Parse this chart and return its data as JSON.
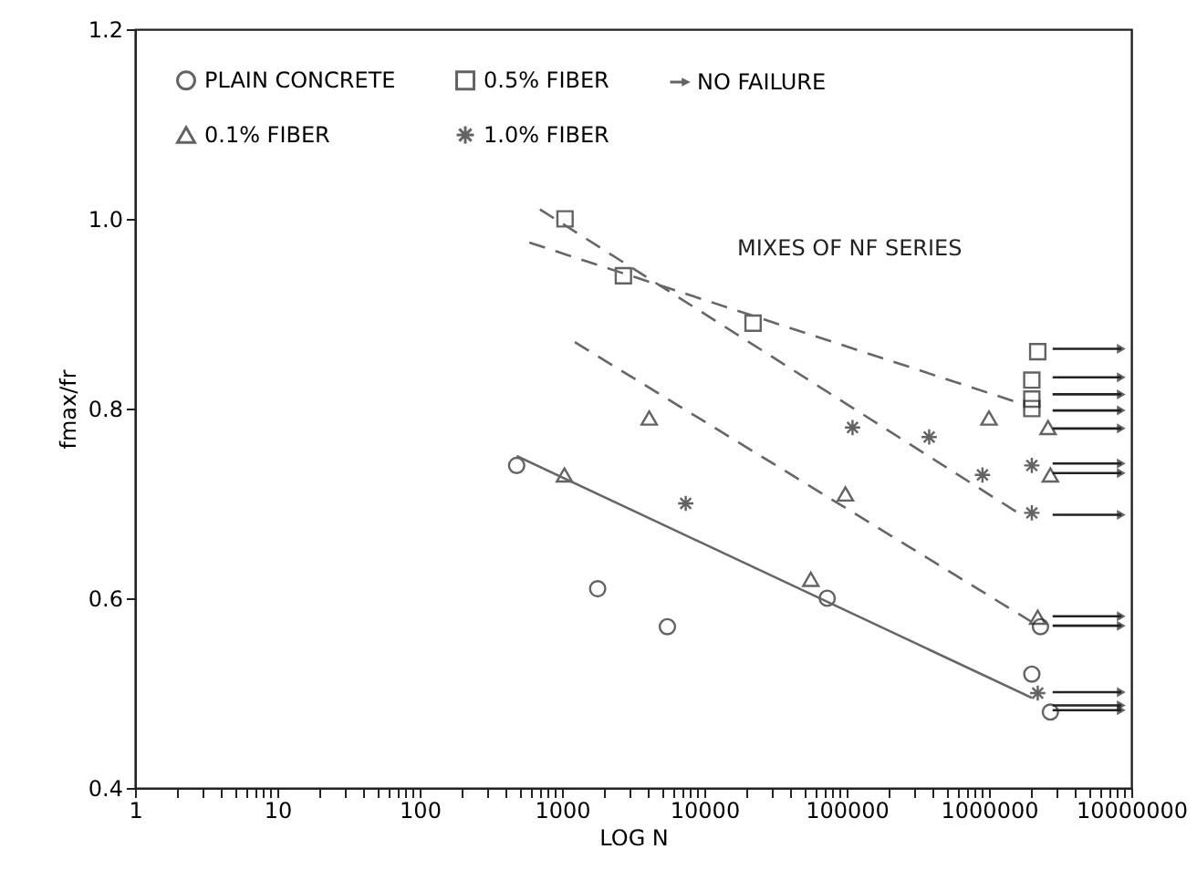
{
  "chart_data": {
    "type": "scatter",
    "xlabel": "LOG N",
    "ylabel": "fmax/fr",
    "annotations": [
      "MIXES OF NF SERIES"
    ],
    "log": "x",
    "grid": false,
    "legend": "top left",
    "xlim": [
      1,
      10000000
    ],
    "ylim": [
      0.4,
      1.2
    ],
    "xticks": [
      1,
      {
        "value": 2,
        "label": null
      },
      {
        "value": 3,
        "label": null
      },
      {
        "value": 4,
        "label": null
      },
      {
        "value": 5,
        "label": null
      },
      {
        "value": 6,
        "label": null
      },
      {
        "value": 7,
        "label": null
      },
      {
        "value": 8,
        "label": null
      },
      {
        "value": 9,
        "label": null
      },
      10,
      {
        "value": 20,
        "label": null
      },
      {
        "value": 30,
        "label": null
      },
      {
        "value": 40,
        "label": null
      },
      {
        "value": 50,
        "label": null
      },
      {
        "value": 60,
        "label": null
      },
      {
        "value": 70,
        "label": null
      },
      {
        "value": 80,
        "label": null
      },
      {
        "value": 90,
        "label": null
      },
      100,
      {
        "value": 200,
        "label": null
      },
      {
        "value": 300,
        "label": null
      },
      {
        "value": 400,
        "label": null
      },
      {
        "value": 500,
        "label": null
      },
      {
        "value": 600,
        "label": null
      },
      {
        "value": 700,
        "label": null
      },
      {
        "value": 800,
        "label": null
      },
      {
        "value": 900,
        "label": null
      },
      1000,
      {
        "value": 2000,
        "label": null
      },
      {
        "value": 3000,
        "label": null
      },
      {
        "value": 4000,
        "label": null
      },
      {
        "value": 5000,
        "label": null
      },
      {
        "value": 6000,
        "label": null
      },
      {
        "value": 7000,
        "label": null
      },
      {
        "value": 8000,
        "label": null
      },
      {
        "value": 9000,
        "label": null
      },
      10000,
      {
        "value": 20000,
        "label": null
      },
      {
        "value": 30000,
        "label": null
      },
      {
        "value": 40000,
        "label": null
      },
      {
        "value": 50000,
        "label": null
      },
      {
        "value": 60000,
        "label": null
      },
      {
        "value": 70000,
        "label": null
      },
      {
        "value": 80000,
        "label": null
      },
      {
        "value": 90000,
        "label": null
      },
      100000,
      {
        "value": 200000,
        "label": null
      },
      {
        "value": 300000,
        "label": null
      },
      {
        "value": 400000,
        "label": null
      },
      {
        "value": 500000,
        "label": null
      },
      {
        "value": 600000,
        "label": null
      },
      {
        "value": 700000,
        "label": null
      },
      {
        "value": 800000,
        "label": null
      },
      {
        "value": 900000,
        "label": null
      },
      1000000,
      {
        "value": 2000000,
        "label": null
      },
      {
        "value": 3000000,
        "label": null
      },
      {
        "value": 4000000,
        "label": null
      },
      {
        "value": 5000000,
        "label": null
      },
      {
        "value": 6000000,
        "label": null
      },
      {
        "value": 7000000,
        "label": null
      },
      {
        "value": 8000000,
        "label": null
      },
      {
        "value": 9000000,
        "label": null
      },
      10000000
    ],
    "yticks": [
      0.4,
      0.6,
      0.8,
      {
        "value": 1.0,
        "label": "1.0"
      },
      1.2
    ],
    "series": [
      {
        "name": "PLAIN CONCRETE",
        "marker": "circle",
        "color": "#222222",
        "x": [
          480,
          1780,
          5500,
          73000,
          2300000,
          2000000,
          2700000
        ],
        "values": [
          0.74,
          0.61,
          0.57,
          0.6,
          0.57,
          0.52,
          0.48
        ]
      },
      {
        "name": "0.1% FIBER",
        "marker": "triangle",
        "color": "#222222",
        "x": [
          1040,
          4100,
          56000,
          98000,
          1000000,
          2600000,
          2700000,
          2200000
        ],
        "values": [
          0.73,
          0.79,
          0.62,
          0.71,
          0.79,
          0.78,
          0.73,
          0.58
        ]
      },
      {
        "name": "0.5% FIBER",
        "marker": "square",
        "color": "#222222",
        "x": [
          1050,
          2700,
          22000,
          2200000,
          2000000,
          2000000,
          2000000
        ],
        "values": [
          1.0,
          0.94,
          0.89,
          0.86,
          0.83,
          0.81,
          0.8
        ]
      },
      {
        "name": "1.0% FIBER",
        "marker": "cross",
        "color": "#222222",
        "x": [
          7400,
          110000,
          380000,
          900000,
          2000000,
          2000000,
          2200000
        ],
        "values": [
          0.7,
          0.78,
          0.77,
          0.73,
          0.74,
          0.69,
          0.5
        ]
      },
      {
        "name": "NO FAILURE",
        "type": "line",
        "marker": "triangle",
        "line_style": "solid",
        "color": "#222222",
        "x": [
          2800000,
          8500000
        ],
        "values": [
          0.863,
          0.863
        ]
      },
      {
        "type": "line",
        "marker": "triangle",
        "line_style": "solid",
        "color": "#222222",
        "x": [
          2800000,
          8500000
        ],
        "values": [
          0.833,
          0.833
        ]
      },
      {
        "type": "line",
        "marker": "triangle",
        "line_style": "solid",
        "color": "#222222",
        "x": [
          2800000,
          8500000
        ],
        "values": [
          0.815,
          0.815
        ]
      },
      {
        "type": "line",
        "marker": "triangle",
        "line_style": "solid",
        "color": "#222222",
        "x": [
          2800000,
          8500000
        ],
        "values": [
          0.798,
          0.798
        ]
      },
      {
        "type": "line",
        "marker": "triangle",
        "line_style": "solid",
        "color": "#222222",
        "x": [
          2800000,
          8500000
        ],
        "values": [
          0.779,
          0.779
        ]
      },
      {
        "type": "line",
        "marker": "triangle",
        "line_style": "solid",
        "color": "#222222",
        "x": [
          2800000,
          8500000
        ],
        "values": [
          0.742,
          0.742
        ]
      },
      {
        "type": "line",
        "marker": "triangle",
        "line_style": "solid",
        "color": "#222222",
        "x": [
          2800000,
          8500000
        ],
        "values": [
          0.732,
          0.732
        ]
      },
      {
        "type": "line",
        "marker": "triangle",
        "line_style": "solid",
        "color": "#222222",
        "x": [
          2800000,
          8500000
        ],
        "values": [
          0.688,
          0.688
        ]
      },
      {
        "type": "line",
        "marker": "triangle",
        "line_style": "solid",
        "color": "#222222",
        "x": [
          2800000,
          8500000
        ],
        "values": [
          0.581,
          0.581
        ]
      },
      {
        "type": "line",
        "marker": "triangle",
        "line_style": "solid",
        "color": "#222222",
        "x": [
          2800000,
          8500000
        ],
        "values": [
          0.571,
          0.571
        ]
      },
      {
        "type": "line",
        "marker": "triangle",
        "line_style": "solid",
        "color": "#222222",
        "x": [
          2800000,
          8500000
        ],
        "values": [
          0.501,
          0.501
        ]
      },
      {
        "type": "line",
        "marker": "triangle",
        "line_style": "solid",
        "color": "#222222",
        "x": [
          2800000,
          8500000
        ],
        "values": [
          0.487,
          0.487
        ]
      },
      {
        "type": "line",
        "marker": "triangle",
        "line_style": "solid",
        "color": "#222222",
        "x": [
          2800000,
          8500000
        ],
        "values": [
          0.482,
          0.482
        ]
      },
      {
        "type": "line",
        "line_style": "solid",
        "color": "#666666",
        "x": [
          480,
          2000000
        ],
        "values": [
          0.75,
          0.495
        ]
      },
      {
        "type": "line",
        "line_style": "dashed",
        "color": "#666666",
        "x": [
          1230,
          2000000
        ],
        "values": [
          0.87,
          0.575
        ]
      },
      {
        "type": "line",
        "line_style": "dashed",
        "color": "#666666",
        "x": [
          700,
          1600000
        ],
        "values": [
          1.01,
          0.69
        ]
      },
      {
        "type": "line",
        "line_style": "dashed",
        "color": "#666666",
        "x": [
          590,
          1700000
        ],
        "values": [
          0.975,
          0.805
        ]
      }
    ]
  }
}
